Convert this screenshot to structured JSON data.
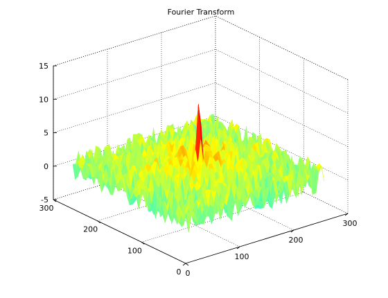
{
  "chart_data": {
    "type": "surface",
    "title": "Fourier Transform",
    "xlabel": "",
    "ylabel": "",
    "zlabel": "",
    "xlim": [
      0,
      300
    ],
    "ylim": [
      0,
      300
    ],
    "zlim": [
      -5,
      15
    ],
    "x_ticks": [
      0,
      100,
      200,
      300
    ],
    "y_ticks": [
      0,
      100,
      200,
      300
    ],
    "z_ticks": [
      -5,
      0,
      5,
      10,
      15
    ],
    "grid": true,
    "colormap": "jet",
    "surface": {
      "x_range": [
        0,
        256
      ],
      "y_range": [
        0,
        256
      ],
      "baseline_level": 1.5,
      "noise_amplitude": 2,
      "peak": {
        "x": 128,
        "y": 128,
        "value": 8
      }
    }
  }
}
